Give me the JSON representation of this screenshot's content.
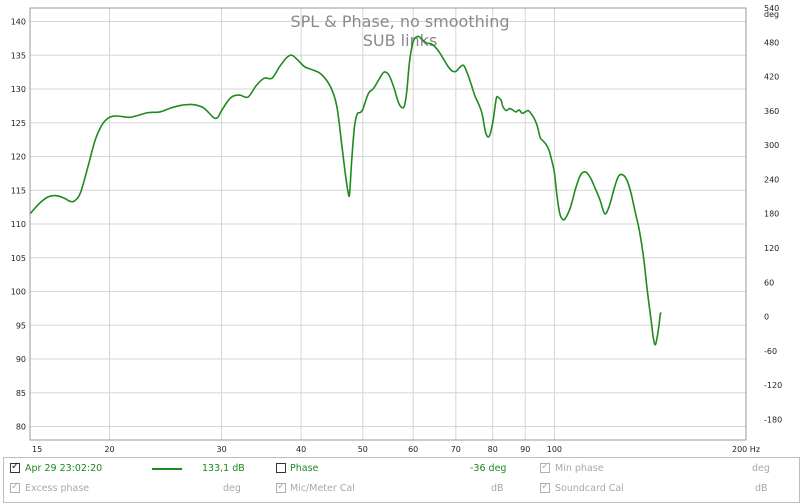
{
  "chart_data": {
    "type": "line",
    "title": "SPL & Phase, no smoothing",
    "subtitle": "SUB links",
    "x_scale": "log",
    "xlim": [
      15,
      200
    ],
    "ylim_left": [
      78,
      142
    ],
    "ylim_right": [
      -216,
      540
    ],
    "left_ticks": [
      "80",
      "85",
      "90",
      "95",
      "100",
      "105",
      "110",
      "115",
      "120",
      "125",
      "130",
      "135",
      "140"
    ],
    "right_unit": "deg",
    "right_ticks": [
      "540",
      "480",
      "420",
      "360",
      "300",
      "240",
      "180",
      "120",
      "60",
      "0",
      "-60",
      "-120",
      "-180"
    ],
    "x_ticks": [
      "15",
      "20",
      "30",
      "40",
      "50",
      "60",
      "70",
      "80",
      "90",
      "100",
      "200 Hz"
    ],
    "grid": true,
    "series": [
      {
        "color": "#1f8a1f",
        "x": [
          15.0,
          15.5,
          16.0,
          16.5,
          17.0,
          17.3,
          17.6,
          18.0,
          18.5,
          19.0,
          19.5,
          20.0,
          20.5,
          21.0,
          21.5,
          22.0,
          23.0,
          24.0,
          25.0,
          26.0,
          27.0,
          28.0,
          28.7,
          29.2,
          29.6,
          30.0,
          31.0,
          32.0,
          33.0,
          34.0,
          35.0,
          36.0,
          37.0,
          38.0,
          38.7,
          39.5,
          40.5,
          41.5,
          43.0,
          44.5,
          45.5,
          46.3,
          47.0,
          47.5,
          47.7,
          48.0,
          48.5,
          49.0,
          49.5,
          50.0,
          51.0,
          52.0,
          53.0,
          54.0,
          55.0,
          56.0,
          57.0,
          58.0,
          58.6,
          59.2,
          60.0,
          61.0,
          62.0,
          63.0,
          64.0,
          65.0,
          66.0,
          67.0,
          68.0,
          69.0,
          70.0,
          71.0,
          72.0,
          73.0,
          74.0,
          75.0,
          76.0,
          77.0,
          78.0,
          79.0,
          80.0,
          81.0,
          81.5,
          82.0,
          82.5,
          83.0,
          84.0,
          85.0,
          86.0,
          87.0,
          88.0,
          89.0,
          90.0,
          91.0,
          92.0,
          93.0,
          94.0,
          95.0,
          96.0,
          97.0,
          98.0,
          99.0,
          100.0,
          101.0,
          102.0,
          103.0,
          104.0,
          106.0,
          108.0,
          110.0,
          112.0,
          114.0,
          116.0,
          118.0,
          120.0,
          122.0,
          124.0,
          126.0,
          128.0,
          130.0,
          132.0,
          134.0,
          136.0,
          138.0,
          140.0,
          142.0,
          143.0,
          144.0,
          145.0,
          146.0,
          146.6,
          147.0
        ],
        "y": [
          111.5,
          113.0,
          114.0,
          114.2,
          113.8,
          113.4,
          113.4,
          114.6,
          118.5,
          122.5,
          124.8,
          125.8,
          126.0,
          125.9,
          125.8,
          126.0,
          126.5,
          126.6,
          127.2,
          127.6,
          127.7,
          127.3,
          126.4,
          125.7,
          125.8,
          126.8,
          128.7,
          129.1,
          128.8,
          130.5,
          131.6,
          131.6,
          133.3,
          134.7,
          135.0,
          134.3,
          133.3,
          132.9,
          132.2,
          130.3,
          127.5,
          122.0,
          117.0,
          114.3,
          114.8,
          119.0,
          124.3,
          126.3,
          126.5,
          127.0,
          129.3,
          130.1,
          131.4,
          132.5,
          132.0,
          130.1,
          127.8,
          127.3,
          129.5,
          134.0,
          137.0,
          137.8,
          137.3,
          136.8,
          136.7,
          136.2,
          135.4,
          134.4,
          133.4,
          132.7,
          132.6,
          133.2,
          133.5,
          132.3,
          130.7,
          129.0,
          127.8,
          126.3,
          123.5,
          123.0,
          125.0,
          128.5,
          128.8,
          128.6,
          128.3,
          127.4,
          126.8,
          127.1,
          126.9,
          126.6,
          126.9,
          126.4,
          126.6,
          126.8,
          126.3,
          125.6,
          124.5,
          122.8,
          122.3,
          121.8,
          121.0,
          119.5,
          117.6,
          114.0,
          111.5,
          110.7,
          110.8,
          112.5,
          115.3,
          117.3,
          117.7,
          116.8,
          115.2,
          113.5,
          111.5,
          112.7,
          115.1,
          117.0,
          117.3,
          116.5,
          114.5,
          111.7,
          109.0,
          105.2,
          100.0,
          95.5,
          93.2,
          92.1,
          93.2,
          95.0,
          96.5,
          96.9
        ]
      }
    ]
  },
  "legend": {
    "row1": {
      "date_label": "Apr 29 23:02:20",
      "spl_value": "133,1 dB",
      "phase_label": "Phase",
      "phase_value": "-36 deg",
      "min_phase_label": "Min phase",
      "min_phase_unit": "deg"
    },
    "row2": {
      "excess_phase_label": "Excess phase",
      "excess_phase_unit": "deg",
      "mic_cal_label": "Mic/Meter Cal",
      "mic_cal_unit": "dB",
      "soundcard_cal_label": "Soundcard Cal",
      "soundcard_cal_unit": "dB"
    }
  },
  "colors": {
    "series": "#1f8a1f",
    "grid": "#d6d6d6",
    "disabled_text": "#a8a8a8",
    "active_text": "#1a8a1a"
  }
}
